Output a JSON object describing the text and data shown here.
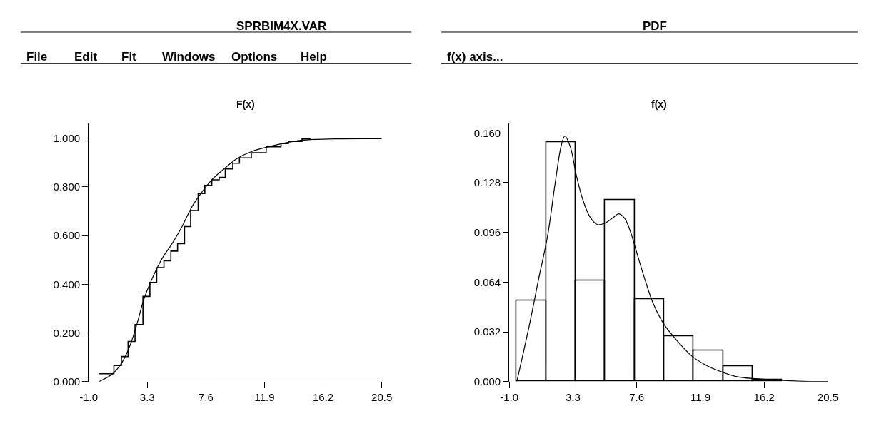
{
  "chart_data": [
    {
      "type": "line",
      "title": "SPRBIM4X.VAR",
      "ylabel": "F(x)",
      "annotations": [
        "File",
        "Edit",
        "Fit",
        "Windows",
        "Options",
        "Help"
      ],
      "xlim": [
        -1.0,
        20.5
      ],
      "xticks": [
        {
          "value": -1.0,
          "label": "-1.0"
        },
        3.3,
        7.6,
        11.9,
        16.2,
        20.5
      ],
      "ylim": [
        0,
        1.06
      ],
      "yticks": [
        {
          "value": 0,
          "label": "0.000"
        },
        {
          "value": 0.2,
          "label": "0.200"
        },
        {
          "value": 0.4,
          "label": "0.400"
        },
        {
          "value": 0.6,
          "label": "0.600"
        },
        {
          "value": 0.8,
          "label": "0.800"
        },
        {
          "value": 1.0,
          "label": "1.000"
        }
      ],
      "series": [
        {
          "type": "step",
          "color": "#000000",
          "x": [
            -0.24,
            0.85,
            1.4,
            1.89,
            2.4,
            2.98,
            3.49,
            3.99,
            4.52,
            5.03,
            5.52,
            6.03,
            6.48,
            7.03,
            7.52,
            8.03,
            8.57,
            9.02,
            9.57,
            10.06,
            10.93,
            12.02,
            13.11,
            13.65,
            14.65,
            15.29
          ],
          "values": [
            0.032,
            0.066,
            0.103,
            0.165,
            0.234,
            0.35,
            0.407,
            0.468,
            0.496,
            0.536,
            0.567,
            0.637,
            0.703,
            0.773,
            0.806,
            0.829,
            0.839,
            0.874,
            0.897,
            0.919,
            0.94,
            0.965,
            0.978,
            0.987,
            0.997,
            0.997
          ]
        },
        {
          "color": "#000000",
          "x": [
            -0.24,
            0.76,
            1.49,
            2.03,
            2.58,
            3.03,
            3.67,
            4.39,
            5.12,
            5.85,
            6.57,
            7.3,
            8.03,
            8.93,
            9.84,
            10.93,
            12.56,
            14.38,
            17.1,
            20.5
          ],
          "values": [
            0,
            0.032,
            0.083,
            0.148,
            0.244,
            0.335,
            0.425,
            0.506,
            0.567,
            0.637,
            0.718,
            0.778,
            0.829,
            0.874,
            0.915,
            0.945,
            0.97,
            0.99,
            0.997,
            0.998
          ]
        }
      ]
    },
    {
      "type": "histogram",
      "title": "PDF",
      "ylabel": "f(x)",
      "annotations": [
        "f(x) axis..."
      ],
      "xlim": [
        -1.0,
        20.5
      ],
      "xticks": [
        {
          "value": -1.0,
          "label": "-1.0"
        },
        3.3,
        7.6,
        11.9,
        16.2,
        20.5
      ],
      "ylim": [
        0,
        0.166
      ],
      "yticks": [
        {
          "value": 0,
          "label": "0.000"
        },
        {
          "value": 0.032,
          "label": "0.032"
        },
        {
          "value": 0.064,
          "label": "0.064"
        },
        {
          "value": 0.096,
          "label": "0.096"
        },
        {
          "value": 0.128,
          "label": "0.128"
        },
        {
          "value": 0.16,
          "label": "0.160"
        }
      ],
      "series": [
        {
          "color": "#000000",
          "bins": [
            -0.5,
            1.49,
            3.48,
            5.47,
            7.46,
            9.45,
            11.44,
            13.43,
            15.42,
            17.41
          ],
          "values": [
            0.052,
            0.154,
            0.065,
            0.117,
            0.053,
            0.029,
            0.02,
            0.01,
            0.001
          ]
        },
        {
          "type": "line",
          "color": "#000000",
          "x": [
            -0.49,
            0.37,
            0.98,
            1.59,
            2.1,
            2.51,
            2.75,
            3.12,
            3.52,
            3.93,
            4.44,
            4.95,
            5.46,
            6.07,
            6.38,
            6.79,
            7.19,
            7.6,
            8.11,
            8.72,
            9.43,
            10.35,
            11.37,
            12.39,
            13.4,
            14.42,
            16.46,
            18.5,
            20.5
          ],
          "values": [
            0,
            0.037,
            0.066,
            0.094,
            0.128,
            0.152,
            0.158,
            0.151,
            0.133,
            0.118,
            0.106,
            0.101,
            0.102,
            0.106,
            0.108,
            0.105,
            0.096,
            0.083,
            0.067,
            0.05,
            0.037,
            0.026,
            0.016,
            0.01,
            0.006,
            0.003,
            0.0013,
            0.0003,
            0
          ]
        }
      ]
    }
  ]
}
